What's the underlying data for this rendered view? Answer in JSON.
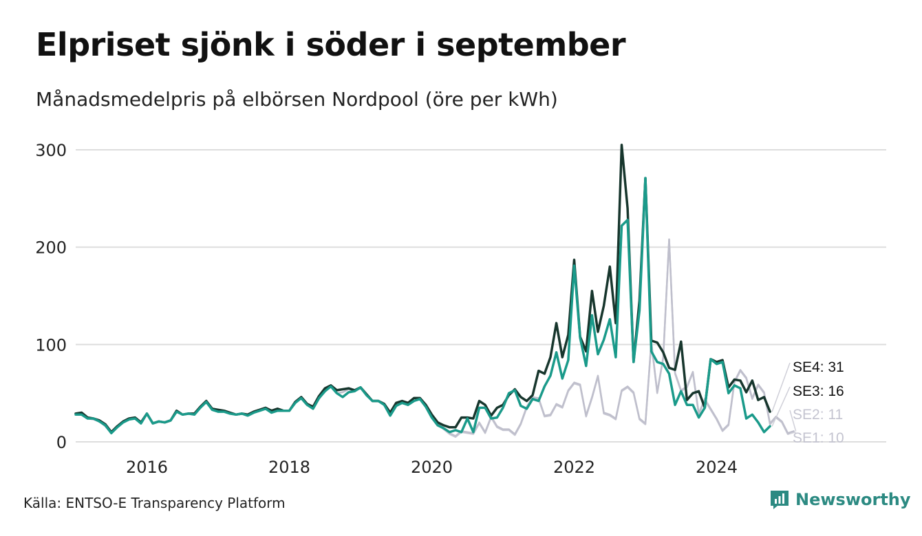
{
  "header": {
    "title": "Elpriset sjönk i söder i september",
    "subtitle": "Månadsmedelpris på elbörsen Nordpool (öre per kWh)"
  },
  "footer": {
    "source": "Källa: ENTSO-E Transparency Platform",
    "brand": "Newsworthy"
  },
  "colors": {
    "SE4": "#17362d",
    "SE3": "#1a9a8a",
    "SE2": "#bfbfcc",
    "SE1": "#c6c6d2",
    "grid": "#dddddd",
    "brand": "#2c8a82"
  },
  "chart_data": {
    "type": "line",
    "x_start": "2015-01",
    "x_step": "month",
    "x_ticks": [
      "2016",
      "2018",
      "2020",
      "2022",
      "2024"
    ],
    "y_ticks": [
      "0",
      "100",
      "200",
      "300"
    ],
    "ylim": [
      0,
      310
    ],
    "grid": true,
    "series": [
      {
        "name": "SE1",
        "label": "SE1: 10",
        "values": [
          28,
          28,
          24,
          23,
          21,
          16,
          9,
          15,
          20,
          23,
          24,
          19,
          29,
          19,
          21,
          20,
          22,
          31,
          28,
          29,
          28,
          35,
          41,
          33,
          31,
          31,
          29,
          28,
          29,
          27,
          30,
          32,
          34,
          30,
          32,
          32,
          32,
          40,
          45,
          38,
          34,
          44,
          52,
          57,
          50,
          51,
          54,
          52,
          55,
          48,
          42,
          42,
          38,
          27,
          37,
          40,
          38,
          42,
          44,
          36,
          26,
          18,
          13,
          8,
          5,
          10,
          9,
          8,
          19,
          9,
          25,
          15,
          12,
          12,
          7,
          18,
          35,
          45,
          44,
          26,
          27,
          38,
          35,
          52,
          60,
          58,
          26,
          45,
          67,
          29,
          27,
          23,
          52,
          56,
          50,
          23,
          18,
          102,
          50,
          86,
          208,
          70,
          52,
          56,
          71,
          28,
          43,
          33,
          23,
          11,
          17,
          61,
          73,
          65,
          44,
          58,
          50,
          18,
          25,
          20,
          8,
          10
        ]
      },
      {
        "name": "SE2",
        "label": "SE2: 11",
        "values": [
          28,
          28,
          24,
          23,
          21,
          16,
          9,
          15,
          20,
          23,
          24,
          19,
          29,
          19,
          21,
          20,
          22,
          31,
          28,
          29,
          28,
          35,
          41,
          33,
          31,
          31,
          29,
          28,
          29,
          27,
          30,
          32,
          34,
          30,
          32,
          32,
          32,
          40,
          45,
          38,
          34,
          44,
          52,
          57,
          50,
          51,
          54,
          52,
          55,
          48,
          42,
          42,
          38,
          27,
          37,
          40,
          38,
          42,
          44,
          36,
          26,
          18,
          14,
          9,
          6,
          11,
          10,
          9,
          20,
          10,
          26,
          16,
          13,
          13,
          8,
          19,
          36,
          46,
          45,
          27,
          28,
          39,
          36,
          53,
          61,
          59,
          27,
          46,
          68,
          30,
          28,
          24,
          53,
          57,
          51,
          24,
          19,
          103,
          51,
          87,
          208,
          71,
          53,
          57,
          72,
          29,
          44,
          34,
          24,
          12,
          18,
          62,
          74,
          66,
          45,
          59,
          51,
          19,
          26,
          21,
          9,
          11
        ]
      },
      {
        "name": "SE3",
        "label": "SE3: 16",
        "values": [
          28,
          28,
          24,
          24,
          21,
          17,
          9,
          15,
          20,
          23,
          24,
          19,
          29,
          19,
          21,
          20,
          22,
          31,
          28,
          29,
          28,
          35,
          41,
          33,
          31,
          31,
          29,
          28,
          29,
          27,
          30,
          32,
          34,
          30,
          32,
          32,
          32,
          40,
          45,
          38,
          34,
          45,
          52,
          57,
          50,
          46,
          51,
          52,
          56,
          48,
          42,
          42,
          38,
          27,
          37,
          40,
          38,
          42,
          44,
          36,
          25,
          17,
          14,
          10,
          12,
          10,
          24,
          10,
          35,
          35,
          24,
          25,
          35,
          50,
          53,
          37,
          34,
          44,
          42,
          57,
          68,
          92,
          65,
          84,
          181,
          107,
          78,
          130,
          90,
          105,
          126,
          87,
          222,
          228,
          82,
          135,
          271,
          93,
          82,
          80,
          70,
          38,
          52,
          38,
          38,
          25,
          35,
          85,
          80,
          82,
          50,
          58,
          55,
          24,
          28,
          20,
          10,
          16
        ]
      },
      {
        "name": "SE4",
        "label": "SE4: 31",
        "values": [
          29,
          30,
          25,
          24,
          22,
          18,
          10,
          16,
          21,
          24,
          25,
          20,
          29,
          19,
          21,
          20,
          22,
          32,
          28,
          29,
          29,
          36,
          42,
          34,
          33,
          32,
          30,
          28,
          29,
          28,
          31,
          33,
          35,
          32,
          34,
          32,
          32,
          41,
          46,
          39,
          36,
          47,
          55,
          58,
          53,
          54,
          55,
          53,
          56,
          49,
          42,
          42,
          39,
          30,
          40,
          42,
          40,
          45,
          45,
          38,
          28,
          20,
          17,
          15,
          15,
          25,
          25,
          24,
          42,
          38,
          27,
          35,
          38,
          48,
          54,
          46,
          42,
          48,
          73,
          70,
          87,
          122,
          87,
          110,
          187,
          108,
          93,
          155,
          113,
          140,
          180,
          122,
          305,
          240,
          82,
          145,
          271,
          104,
          102,
          92,
          76,
          74,
          103,
          43,
          50,
          52,
          35,
          85,
          82,
          84,
          56,
          64,
          63,
          51,
          63,
          43,
          46,
          31
        ]
      }
    ]
  }
}
